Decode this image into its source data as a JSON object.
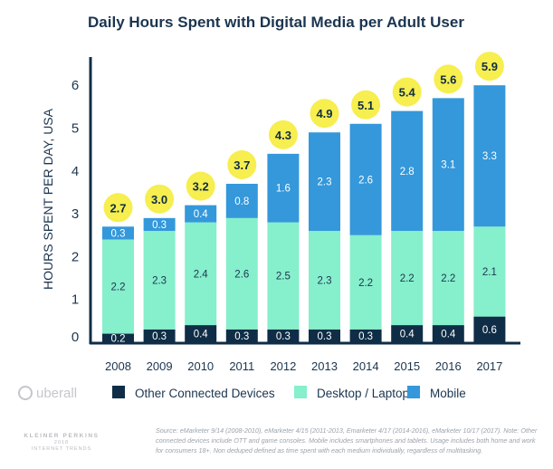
{
  "chart_data": {
    "type": "bar",
    "stacked": true,
    "title": "Daily Hours Spent with Digital Media per Adult User",
    "ylabel": "HOURS SPENT PER DAY, USA",
    "xlabel": "",
    "ylim": [
      0,
      6.5
    ],
    "yticks": [
      0,
      1,
      2,
      3,
      4,
      5,
      6
    ],
    "grid": false,
    "legend_placement": "bottom",
    "categories": [
      "2008",
      "2009",
      "2010",
      "2011",
      "2012",
      "2013",
      "2014",
      "2015",
      "2016",
      "2017"
    ],
    "series": [
      {
        "name": "Other Connected Devices",
        "color": "#0f2d46",
        "values": [
          0.2,
          0.3,
          0.4,
          0.3,
          0.3,
          0.3,
          0.3,
          0.4,
          0.4,
          0.6
        ]
      },
      {
        "name": "Desktop / Laptop",
        "color": "#86efcb",
        "values": [
          2.2,
          2.3,
          2.4,
          2.6,
          2.5,
          2.3,
          2.2,
          2.2,
          2.2,
          2.1
        ]
      },
      {
        "name": "Mobile",
        "color": "#3498db",
        "values": [
          0.3,
          0.3,
          0.4,
          0.8,
          1.6,
          2.3,
          2.6,
          2.8,
          3.1,
          3.3
        ]
      }
    ],
    "totals": [
      2.7,
      3.0,
      3.2,
      3.7,
      4.3,
      4.9,
      5.1,
      5.4,
      5.6,
      5.9
    ],
    "total_bubble_color": "#f7ee4f"
  },
  "branding": {
    "logo": "uberall",
    "watermark": "KLEINER PERKINS 2018 INTERNET TRENDS"
  },
  "source_note": "Source: eMarketer 9/14 (2008-2010), eMarketer 4/15 (2011-2013, Emarketer 4/17 (2014-2016), eMarketer 10/17 (2017). Note: Other connected devices include OTT and game consoles. Mobile includes smartphones and tablets. Usage includes both home and work for consumers 18+. Non deduped defined as time spent with each medium individually, regardless of multitasking."
}
